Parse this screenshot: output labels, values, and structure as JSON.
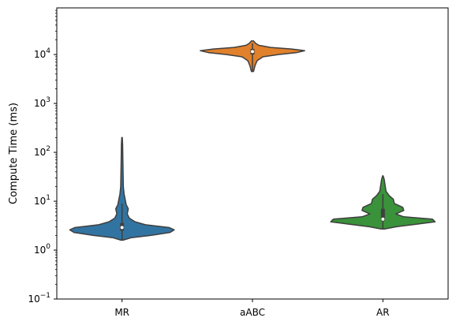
{
  "chart_data": {
    "type": "violin",
    "ylabel": "Compute Time (ms)",
    "yscale": "log",
    "ylim": [
      0.1,
      90000
    ],
    "yticks": [
      {
        "value": 0.1,
        "base": "10",
        "exp": "−1"
      },
      {
        "value": 1,
        "base": "10",
        "exp": "0"
      },
      {
        "value": 10,
        "base": "10",
        "exp": "1"
      },
      {
        "value": 100,
        "base": "10",
        "exp": "2"
      },
      {
        "value": 1000,
        "base": "10",
        "exp": "3"
      },
      {
        "value": 10000,
        "base": "10",
        "exp": "4"
      }
    ],
    "categories": [
      "MR",
      "aABC",
      "AR"
    ],
    "grid": false,
    "series": [
      {
        "category": "MR",
        "color": "#3274a1",
        "min": 1.6,
        "q1": 2.5,
        "median": 2.9,
        "q3": 3.6,
        "max": 200,
        "whisker_high": 9,
        "density": [
          [
            1.6,
            0.02
          ],
          [
            1.8,
            0.18
          ],
          [
            2.0,
            0.55
          ],
          [
            2.3,
            0.92
          ],
          [
            2.6,
            1.0
          ],
          [
            2.9,
            0.9
          ],
          [
            3.3,
            0.45
          ],
          [
            3.8,
            0.25
          ],
          [
            4.5,
            0.14
          ],
          [
            5.5,
            0.1
          ],
          [
            7.0,
            0.12
          ],
          [
            8.5,
            0.08
          ],
          [
            11,
            0.06
          ],
          [
            14,
            0.04
          ],
          [
            20,
            0.025
          ],
          [
            40,
            0.02
          ],
          [
            80,
            0.015
          ],
          [
            140,
            0.012
          ],
          [
            200,
            0.005
          ]
        ]
      },
      {
        "category": "aABC",
        "color": "#e1812c",
        "min": 4500,
        "q1": 10000,
        "median": 11500,
        "q3": 13000,
        "max": 19000,
        "whisker_high": 17000,
        "density": [
          [
            4500,
            0.02
          ],
          [
            6000,
            0.05
          ],
          [
            7500,
            0.09
          ],
          [
            9000,
            0.2
          ],
          [
            10000,
            0.5
          ],
          [
            11000,
            0.85
          ],
          [
            12000,
            1.0
          ],
          [
            13000,
            0.75
          ],
          [
            14000,
            0.35
          ],
          [
            15500,
            0.12
          ],
          [
            17000,
            0.06
          ],
          [
            19000,
            0.02
          ]
        ]
      },
      {
        "category": "AR",
        "color": "#3a923a",
        "min": 2.7,
        "q1": 4.0,
        "median": 4.3,
        "q3": 7.0,
        "max": 33,
        "whisker_high": 14,
        "density": [
          [
            2.7,
            0.03
          ],
          [
            3.0,
            0.25
          ],
          [
            3.4,
            0.65
          ],
          [
            3.8,
            1.0
          ],
          [
            4.3,
            0.95
          ],
          [
            4.8,
            0.4
          ],
          [
            5.5,
            0.25
          ],
          [
            6.5,
            0.4
          ],
          [
            7.5,
            0.38
          ],
          [
            9.0,
            0.22
          ],
          [
            11,
            0.2
          ],
          [
            13,
            0.12
          ],
          [
            16,
            0.06
          ],
          [
            22,
            0.04
          ],
          [
            28,
            0.025
          ],
          [
            33,
            0.005
          ]
        ]
      }
    ]
  }
}
